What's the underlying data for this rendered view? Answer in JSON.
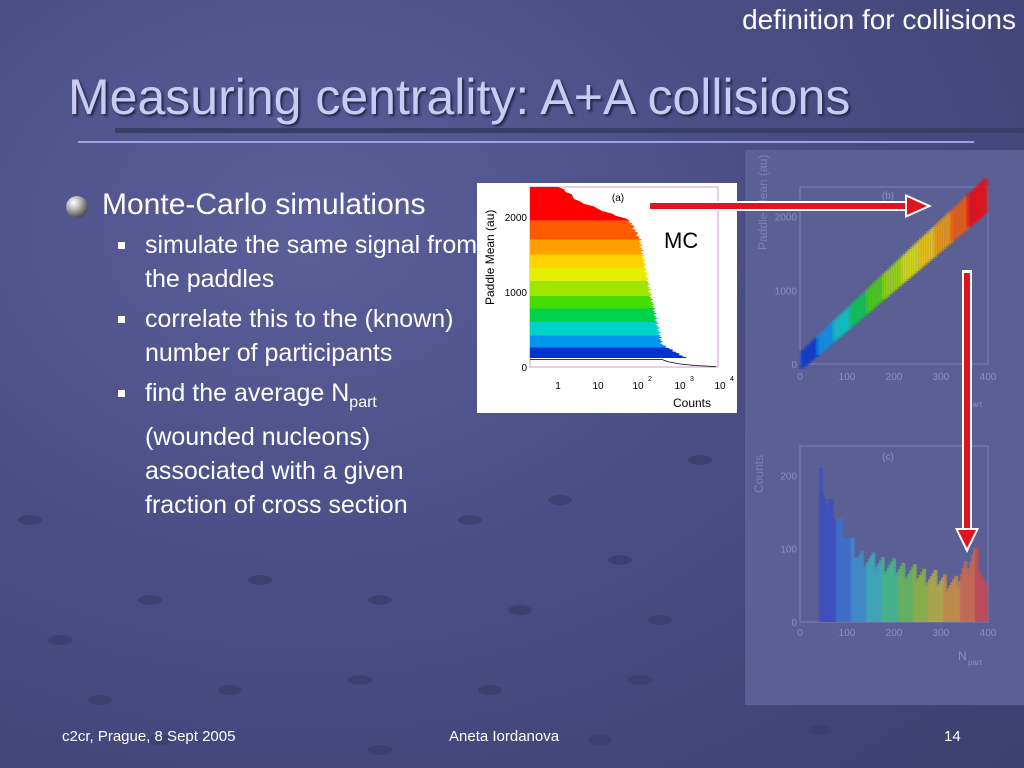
{
  "header": {
    "corner_title": "definition for collisions",
    "title": "Measuring centrality: A+A collisions"
  },
  "bullets": {
    "main": "Monte-Carlo simulations",
    "sub1": "simulate the same signal from the paddles",
    "sub2": "correlate this to the (known) number of participants",
    "sub3_prefix": "find the average N",
    "sub3_subscript": "part",
    "sub3_rest": "(wounded nucleons) associated with a given fraction of cross section"
  },
  "annotations": {
    "mc": "MC"
  },
  "footer": {
    "left": "c2cr, Prague, 8 Sept 2005",
    "center": "Aneta Iordanova",
    "page": "14"
  },
  "colors": {
    "accent_arrow": "#e0141e",
    "title": "#c9ccf2"
  },
  "chart_data": [
    {
      "panel": "(a)",
      "type": "bar",
      "orientation": "horizontal",
      "xlabel": "Counts",
      "ylabel": "Paddle Mean (au)",
      "xscale": "log",
      "x_ticks": [
        "1",
        "10",
        "10",
        "10",
        "10"
      ],
      "x_tick_exponents": [
        "",
        "",
        "2",
        "3",
        "4"
      ],
      "y_ticks": [
        "0",
        "1000",
        "2000"
      ],
      "ylim": [
        0,
        2400
      ],
      "bands": [
        {
          "color": "#ff0000",
          "y": [
            1950,
            2400
          ]
        },
        {
          "color": "#ff5a00",
          "y": [
            1700,
            1950
          ]
        },
        {
          "color": "#ffa000",
          "y": [
            1500,
            1700
          ]
        },
        {
          "color": "#ffd200",
          "y": [
            1320,
            1500
          ]
        },
        {
          "color": "#e6ee00",
          "y": [
            1150,
            1320
          ]
        },
        {
          "color": "#a0e600",
          "y": [
            950,
            1150
          ]
        },
        {
          "color": "#46dc00",
          "y": [
            780,
            950
          ]
        },
        {
          "color": "#00d24a",
          "y": [
            600,
            780
          ]
        },
        {
          "color": "#00d2c8",
          "y": [
            420,
            600
          ]
        },
        {
          "color": "#0096f0",
          "y": [
            260,
            420
          ]
        },
        {
          "color": "#0032d2",
          "y": [
            120,
            260
          ]
        }
      ]
    },
    {
      "panel": "(b)",
      "type": "scatter",
      "xlabel": "N",
      "xlabel_subscript": "part",
      "ylabel": "Paddle Mean (au)",
      "x_ticks": [
        "0",
        "100",
        "200",
        "300",
        "400"
      ],
      "y_ticks": [
        "0",
        "1000",
        "2000"
      ],
      "xlim": [
        0,
        400
      ],
      "ylim": [
        0,
        2400
      ]
    },
    {
      "panel": "(c)",
      "type": "bar",
      "xlabel": "N",
      "xlabel_subscript": "part",
      "ylabel": "Counts",
      "x_ticks": [
        "0",
        "100",
        "200",
        "300",
        "400"
      ],
      "y_ticks": [
        "0",
        "100",
        "200"
      ],
      "xlim": [
        0,
        400
      ],
      "ylim": [
        0,
        240
      ]
    }
  ]
}
